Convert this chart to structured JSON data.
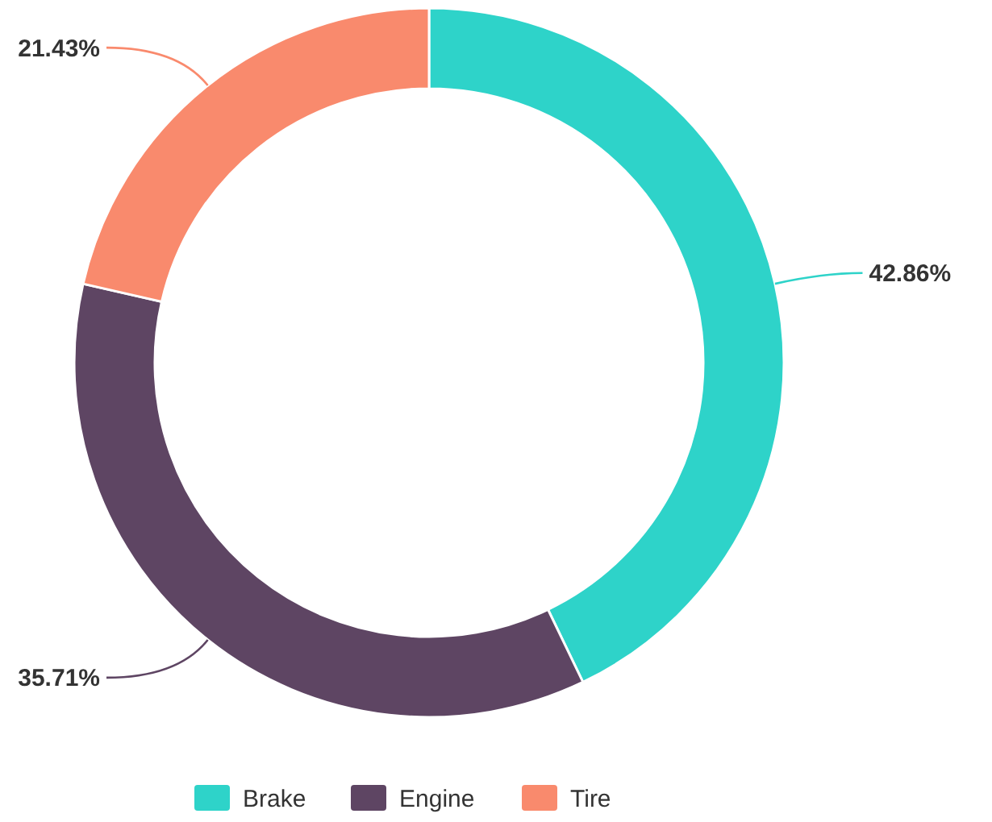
{
  "chart_data": {
    "type": "donut",
    "categories": [
      "Brake",
      "Engine",
      "Tire"
    ],
    "values": [
      42.86,
      35.71,
      21.43
    ],
    "colors": [
      "#2ed3c9",
      "#5e4563",
      "#f98a6d"
    ],
    "value_labels": [
      "42.86%",
      "35.71%",
      "21.43%"
    ],
    "legend": "bottom"
  }
}
